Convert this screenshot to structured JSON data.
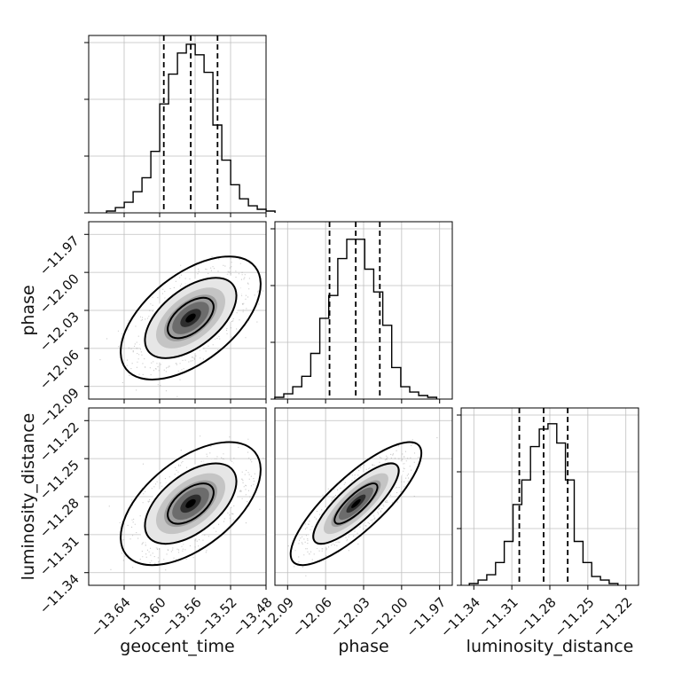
{
  "chart_data": {
    "type": "corner",
    "parameters": [
      "geocent_time",
      "phase",
      "luminosity_distance"
    ],
    "grid": true,
    "quantile_lines": "dashed",
    "histograms": [
      {
        "parameter": "geocent_time",
        "xlim": [
          -13.68,
          -13.48
        ],
        "bin_width": 0.01,
        "ylim": [
          0,
          1.0
        ],
        "values": [
          0.01,
          0.03,
          0.06,
          0.12,
          0.2,
          0.35,
          0.62,
          0.79,
          0.91,
          0.96,
          0.9,
          0.8,
          0.5,
          0.3,
          0.16,
          0.08,
          0.04,
          0.02,
          0.01
        ],
        "quantiles": [
          -13.5953,
          -13.5649,
          -13.5347
        ]
      },
      {
        "parameter": "phase",
        "xlim": [
          -12.1,
          -11.96
        ],
        "bin_width": 0.0071,
        "ylim": [
          0,
          1.0
        ],
        "values": [
          0.01,
          0.03,
          0.07,
          0.13,
          0.26,
          0.46,
          0.59,
          0.8,
          0.91,
          0.91,
          0.74,
          0.61,
          0.42,
          0.18,
          0.07,
          0.04,
          0.02,
          0.01
        ],
        "quantiles": [
          -12.0569,
          -12.0362,
          -12.0172
        ]
      },
      {
        "parameter": "luminosity_distance",
        "xlim": [
          -11.35,
          -11.21
        ],
        "bin_width": 0.0069,
        "ylim": [
          0,
          1.0
        ],
        "values": [
          0.01,
          0.03,
          0.06,
          0.13,
          0.25,
          0.46,
          0.6,
          0.79,
          0.89,
          0.92,
          0.81,
          0.6,
          0.25,
          0.13,
          0.05,
          0.03,
          0.01
        ],
        "quantiles": [
          -11.3041,
          -11.2849,
          -11.2659
        ]
      }
    ],
    "scatter_panels": [
      {
        "x": "geocent_time",
        "y": "phase",
        "xlim": [
          -13.68,
          -13.48
        ],
        "ylim": [
          -12.1,
          -11.96
        ],
        "mean": [
          -13.565,
          -12.036
        ],
        "sd": [
          0.026,
          0.016
        ],
        "corr": 0.55,
        "density_levels": [
          0.39,
          0.86,
          0.99
        ]
      },
      {
        "x": "geocent_time",
        "y": "luminosity_distance",
        "xlim": [
          -13.68,
          -13.48
        ],
        "ylim": [
          -11.35,
          -11.21
        ],
        "mean": [
          -13.565,
          -11.2855
        ],
        "sd": [
          0.026,
          0.016
        ],
        "corr": 0.55,
        "density_levels": [
          0.39,
          0.86,
          0.99
        ]
      },
      {
        "x": "phase",
        "y": "luminosity_distance",
        "xlim": [
          -12.1,
          -11.96
        ],
        "ylim": [
          -11.35,
          -11.21
        ],
        "mean": [
          -12.036,
          -11.2855
        ],
        "sd": [
          0.017,
          0.016
        ],
        "corr": 0.82,
        "density_levels": [
          0.39,
          0.86,
          0.99
        ]
      }
    ],
    "x_ticks": {
      "geocent_time": [
        "−13.64",
        "−13.60",
        "−13.56",
        "−13.52",
        "−13.48"
      ],
      "phase": [
        "−12.09",
        "−12.06",
        "−12.03",
        "−12.00",
        "−11.97"
      ],
      "luminosity_distance": [
        "−11.34",
        "−11.31",
        "−11.28",
        "−11.25",
        "−11.22"
      ]
    },
    "x_tick_values": {
      "geocent_time": [
        -13.64,
        -13.6,
        -13.56,
        -13.52,
        -13.48
      ],
      "phase": [
        -12.09,
        -12.06,
        -12.03,
        -12.0,
        -11.97
      ],
      "luminosity_distance": [
        -11.34,
        -11.31,
        -11.28,
        -11.25,
        -11.22
      ]
    },
    "y_ticks": {
      "phase": [
        "−11.97",
        "−12.00",
        "−12.03",
        "−12.06",
        "−12.09"
      ],
      "luminosity_distance": [
        "−11.22",
        "−11.25",
        "−11.28",
        "−11.31",
        "−11.34"
      ]
    },
    "y_tick_values": {
      "phase": [
        -11.97,
        -12.0,
        -12.03,
        -12.06,
        -12.09
      ],
      "luminosity_distance": [
        -11.22,
        -11.25,
        -11.28,
        -11.31,
        -11.34
      ]
    },
    "x_axis_labels": [
      "geocent_time",
      "phase",
      "luminosity_distance"
    ],
    "y_axis_labels": [
      "phase",
      "luminosity_distance"
    ]
  }
}
